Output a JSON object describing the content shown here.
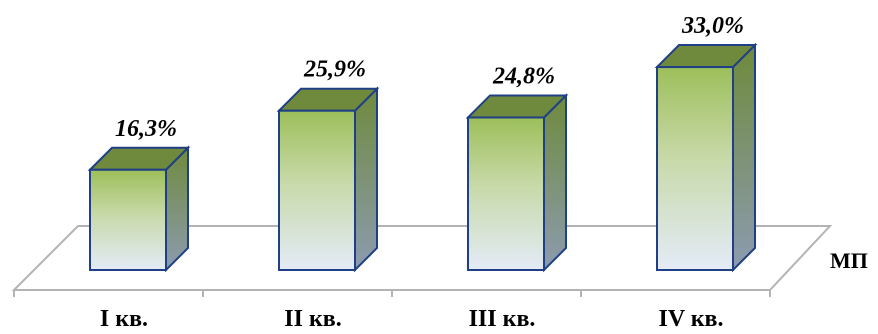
{
  "chart_data": {
    "type": "bar",
    "categories": [
      "I кв.",
      "II кв.",
      "III кв.",
      "IV кв."
    ],
    "series": [
      {
        "name": "МП",
        "values": [
          16.3,
          25.9,
          24.8,
          33.0
        ],
        "labels": [
          "16,3%",
          "25,9%",
          "24,8%",
          "33,0%"
        ]
      }
    ],
    "ylim": [
      0,
      40
    ],
    "grid": false,
    "colors": {
      "front_top": "#9dbf5a",
      "front_bottom": "#e4ebf7",
      "side": "#6f8a3c",
      "top_face": "#6f8a3c",
      "outline": "#1f3f86",
      "floor": "#b3b3b3"
    }
  }
}
